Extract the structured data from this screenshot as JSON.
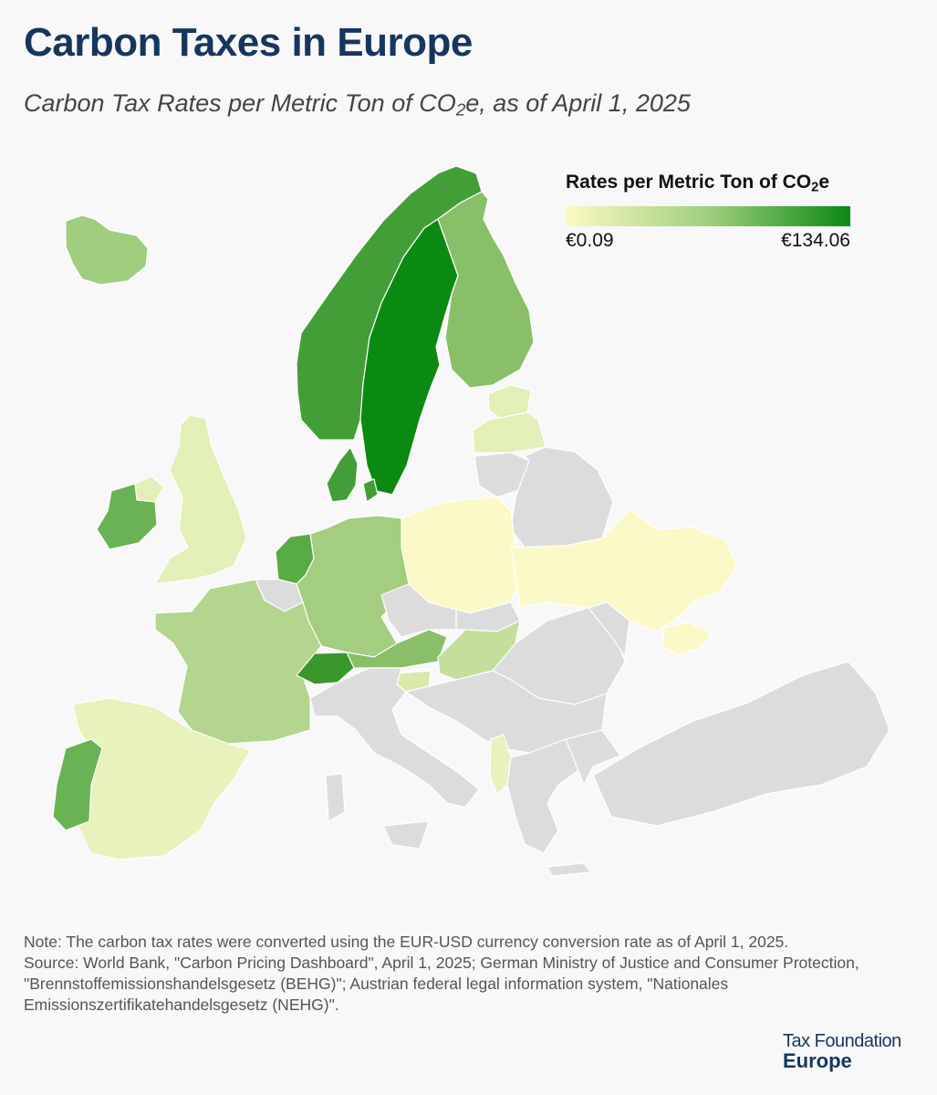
{
  "header": {
    "title": "Carbon Taxes in Europe",
    "subtitle_main": "Carbon Tax Rates per Metric Ton of CO",
    "subtitle_sub": "2",
    "subtitle_tail": "e, as of April 1, 2025"
  },
  "legend": {
    "title_main": "Rates per Metric Ton of CO",
    "title_sub": "2",
    "title_tail": "e",
    "min_label": "€0.09",
    "max_label": "€134.06",
    "colors": {
      "low": "#fbfac3",
      "mid": "#9fcf7e",
      "high": "#0b8a12",
      "no_tax": "#dcdcdc"
    }
  },
  "note": {
    "line1": "Note: The carbon tax rates were converted using the EUR-USD currency conversion rate as of April 1, 2025.",
    "line2": "Source: World Bank, \"Carbon Pricing Dashboard\", April 1, 2025; German Ministry of Justice and Consumer Protection, \"Brennstoffemissionshandelsgesetz (BEHG)\"; Austrian federal legal information system, \"Nationales Emissionszertifikatehandelsgesetz (NEHG)\"."
  },
  "brand": {
    "line1": "Tax Foundation",
    "line2": "Europe"
  },
  "map": {
    "countries": [
      {
        "id": "iceland",
        "fill": "#9fcf7e"
      },
      {
        "id": "norway",
        "fill": "#449e37"
      },
      {
        "id": "sweden",
        "fill": "#0b8a12"
      },
      {
        "id": "finland",
        "fill": "#88bf68"
      },
      {
        "id": "denmark",
        "fill": "#449e37"
      },
      {
        "id": "estonia",
        "fill": "#e2efb6"
      },
      {
        "id": "latvia",
        "fill": "#e2efb6"
      },
      {
        "id": "lithuania",
        "fill": "#dcdcdc"
      },
      {
        "id": "belarus",
        "fill": "#dcdcdc"
      },
      {
        "id": "poland",
        "fill": "#fcf9c8"
      },
      {
        "id": "ukraine",
        "fill": "#fcf9c8"
      },
      {
        "id": "uk",
        "fill": "#e2efb6"
      },
      {
        "id": "ireland",
        "fill": "#6ab354"
      },
      {
        "id": "netherlands",
        "fill": "#58ab44"
      },
      {
        "id": "belgium",
        "fill": "#dcdcdc"
      },
      {
        "id": "germany",
        "fill": "#a3cd7f"
      },
      {
        "id": "france",
        "fill": "#b3d58d"
      },
      {
        "id": "switzerland",
        "fill": "#3a972c"
      },
      {
        "id": "austria",
        "fill": "#88bf68"
      },
      {
        "id": "slovenia",
        "fill": "#d7eaa8"
      },
      {
        "id": "hungary",
        "fill": "#c3df9b"
      },
      {
        "id": "czechia",
        "fill": "#dcdcdc"
      },
      {
        "id": "slovakia",
        "fill": "#dcdcdc"
      },
      {
        "id": "spain",
        "fill": "#e7f2bd"
      },
      {
        "id": "portugal",
        "fill": "#6ab354"
      },
      {
        "id": "italy",
        "fill": "#dcdcdc"
      },
      {
        "id": "balkans",
        "fill": "#dcdcdc"
      },
      {
        "id": "albania",
        "fill": "#e7f2bd"
      },
      {
        "id": "greece",
        "fill": "#dcdcdc"
      },
      {
        "id": "romania",
        "fill": "#dcdcdc"
      },
      {
        "id": "moldova",
        "fill": "#dcdcdc"
      },
      {
        "id": "turkey",
        "fill": "#dcdcdc"
      }
    ]
  }
}
